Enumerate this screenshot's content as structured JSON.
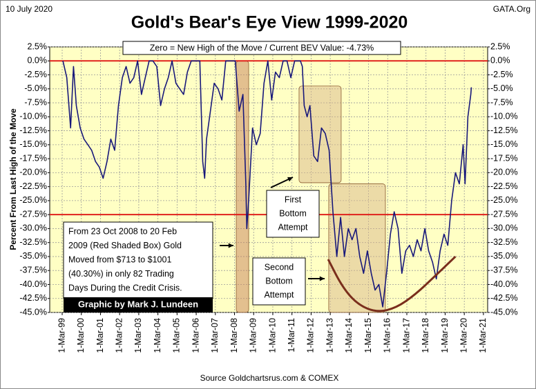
{
  "chart_data": {
    "type": "line",
    "title": "Gold's Bear's Eye View 1999-2020",
    "date_label": "10 July 2020",
    "corner_label": "GATA.Org",
    "source": "Source Goldchartsrus.com & COMEX",
    "y_label": "Percent  From Last High of the Move",
    "header_box": "Zero = New High of the Move / Current BEV Value:  -4.73%",
    "credit": "Graphic by Mark J. Lundeen",
    "annotations": [
      {
        "lines": [
          "From 23 Oct 2008 to 20 Feb",
          "2009 (Red Shaded Box)  Gold",
          "Moved from $713 to $1001",
          "(40.30%) in only 82 Trading",
          "Days During the Credit Crisis."
        ]
      },
      {
        "lines": [
          "First",
          "Bottom",
          "Attempt"
        ]
      },
      {
        "lines": [
          "Second",
          "Bottom",
          "Attempt"
        ]
      }
    ],
    "xlim": [
      1998.51,
      2021.38
    ],
    "ylim": [
      -45,
      2.5
    ],
    "grid": true,
    "xticks": [
      {
        "value": 1999.16,
        "label": "1-Mar-99"
      },
      {
        "value": 2000.16,
        "label": "1-Mar-00"
      },
      {
        "value": 2001.16,
        "label": "1-Mar-01"
      },
      {
        "value": 2002.16,
        "label": "1-Mar-02"
      },
      {
        "value": 2003.16,
        "label": "1-Mar-03"
      },
      {
        "value": 2004.16,
        "label": "1-Mar-04"
      },
      {
        "value": 2005.16,
        "label": "1-Mar-05"
      },
      {
        "value": 2006.16,
        "label": "1-Mar-06"
      },
      {
        "value": 2007.16,
        "label": "1-Mar-07"
      },
      {
        "value": 2008.16,
        "label": "1-Mar-08"
      },
      {
        "value": 2009.16,
        "label": "1-Mar-09"
      },
      {
        "value": 2010.16,
        "label": "1-Mar-10"
      },
      {
        "value": 2011.16,
        "label": "1-Mar-11"
      },
      {
        "value": 2012.16,
        "label": "1-Mar-12"
      },
      {
        "value": 2013.16,
        "label": "1-Mar-13"
      },
      {
        "value": 2014.16,
        "label": "1-Mar-14"
      },
      {
        "value": 2015.16,
        "label": "1-Mar-15"
      },
      {
        "value": 2016.16,
        "label": "1-Mar-16"
      },
      {
        "value": 2017.16,
        "label": "1-Mar-17"
      },
      {
        "value": 2018.16,
        "label": "1-Mar-18"
      },
      {
        "value": 2019.16,
        "label": "1-Mar-19"
      },
      {
        "value": 2020.16,
        "label": "1-Mar-20"
      },
      {
        "value": 2021.16,
        "label": "1-Mar-21"
      }
    ],
    "yticks": [
      {
        "value": 2.5,
        "label": "2.5%"
      },
      {
        "value": 0,
        "label": "0.0%"
      },
      {
        "value": -2.5,
        "label": "-2.5%"
      },
      {
        "value": -5,
        "label": "-5.0%"
      },
      {
        "value": -7.5,
        "label": "-7.5%"
      },
      {
        "value": -10,
        "label": "-10.0%"
      },
      {
        "value": -12.5,
        "label": "-12.5%"
      },
      {
        "value": -15,
        "label": "-15.0%"
      },
      {
        "value": -17.5,
        "label": "-17.5%"
      },
      {
        "value": -20,
        "label": "-20.0%"
      },
      {
        "value": -22.5,
        "label": "-22.5%"
      },
      {
        "value": -25,
        "label": "-25.0%"
      },
      {
        "value": -27.5,
        "label": "-27.5%"
      },
      {
        "value": -30,
        "label": "-30.0%"
      },
      {
        "value": -32.5,
        "label": "-32.5%"
      },
      {
        "value": -35,
        "label": "-35.0%"
      },
      {
        "value": -37.5,
        "label": "-37.5%"
      },
      {
        "value": -40,
        "label": "-40.0%"
      },
      {
        "value": -42.5,
        "label": "-42.5%"
      },
      {
        "value": -45,
        "label": "-45.0%"
      }
    ],
    "reference_lines": {
      "color": "#e0201c",
      "values": [
        0,
        -27.5
      ]
    },
    "shaded_regions": [
      {
        "color": "#c8825a",
        "x": [
          2008.25,
          2008.9
        ],
        "y": [
          0,
          -45
        ]
      },
      {
        "color": "#d9b88a",
        "x": [
          2011.53,
          2013.73
        ],
        "y": [
          -4.5,
          -21.8
        ]
      },
      {
        "color": "#d9b88a",
        "x": [
          2013.08,
          2016.04
        ],
        "y": [
          -22,
          -45
        ]
      }
    ],
    "curve": {
      "color": "#7a2e1c",
      "x": [
        2013.05,
        2013.8,
        2014.6,
        2015.6,
        2016.6,
        2017.6,
        2018.6,
        2019.7
      ],
      "values": [
        -35.5,
        -40.5,
        -43.6,
        -45,
        -44.2,
        -41.8,
        -38.6,
        -35
      ]
    },
    "series": [
      {
        "name": "BEV",
        "color": "#17177a",
        "x": [
          1999.2,
          1999.4,
          1999.6,
          1999.75,
          1999.9,
          2000.1,
          2000.3,
          2000.5,
          2000.7,
          2000.9,
          2001.1,
          2001.3,
          2001.5,
          2001.7,
          2001.9,
          2002.1,
          2002.3,
          2002.5,
          2002.7,
          2002.9,
          2003.1,
          2003.3,
          2003.5,
          2003.7,
          2003.9,
          2004.1,
          2004.3,
          2004.5,
          2004.7,
          2004.9,
          2005.1,
          2005.3,
          2005.5,
          2005.7,
          2005.9,
          2006.1,
          2006.35,
          2006.5,
          2006.6,
          2006.7,
          2006.9,
          2007.1,
          2007.3,
          2007.5,
          2007.7,
          2007.9,
          2008.2,
          2008.4,
          2008.6,
          2008.75,
          2008.8,
          2008.9,
          2009.1,
          2009.3,
          2009.5,
          2009.7,
          2009.9,
          2010.1,
          2010.3,
          2010.5,
          2010.7,
          2010.9,
          2011.1,
          2011.3,
          2011.6,
          2011.7,
          2011.8,
          2011.95,
          2012.1,
          2012.3,
          2012.5,
          2012.7,
          2012.9,
          2013.1,
          2013.3,
          2013.5,
          2013.7,
          2013.9,
          2014.1,
          2014.3,
          2014.5,
          2014.7,
          2014.9,
          2015.1,
          2015.3,
          2015.5,
          2015.7,
          2015.9,
          2016.1,
          2016.3,
          2016.5,
          2016.7,
          2016.9,
          2017.1,
          2017.3,
          2017.5,
          2017.7,
          2017.9,
          2018.1,
          2018.3,
          2018.5,
          2018.7,
          2018.9,
          2019.1,
          2019.3,
          2019.5,
          2019.7,
          2019.9,
          2020.1,
          2020.2,
          2020.35,
          2020.5,
          2020.53
        ],
        "values": [
          0,
          -3,
          -12,
          -1,
          -8,
          -12,
          -14,
          -15,
          -16,
          -18,
          -19,
          -21,
          -18,
          -14,
          -16,
          -8,
          -3,
          -1,
          -4,
          -3,
          0,
          -6,
          -3,
          0,
          0,
          -1,
          -8,
          -5,
          -3,
          0,
          -4,
          -5,
          -6,
          -2,
          0,
          0,
          0,
          -18,
          -21,
          -14,
          -9,
          -4,
          -5,
          -7,
          0,
          0,
          0,
          -9,
          -6,
          -22,
          -30,
          -25,
          -12,
          -15,
          -13,
          -4,
          0,
          -7,
          -2,
          -3,
          0,
          0,
          -3,
          0,
          0,
          -1,
          -8,
          -10,
          -8,
          -17,
          -18,
          -12,
          -13,
          -16,
          -27,
          -35,
          -28,
          -35,
          -30,
          -32,
          -30,
          -35,
          -38,
          -34,
          -38,
          -41,
          -40,
          -44,
          -38,
          -31,
          -27,
          -30,
          -38,
          -34,
          -33,
          -35,
          -32,
          -34,
          -30,
          -34,
          -36,
          -39,
          -34,
          -31,
          -33,
          -25,
          -20,
          -22,
          -15,
          -22,
          -10,
          -6,
          -4.73
        ]
      }
    ]
  }
}
